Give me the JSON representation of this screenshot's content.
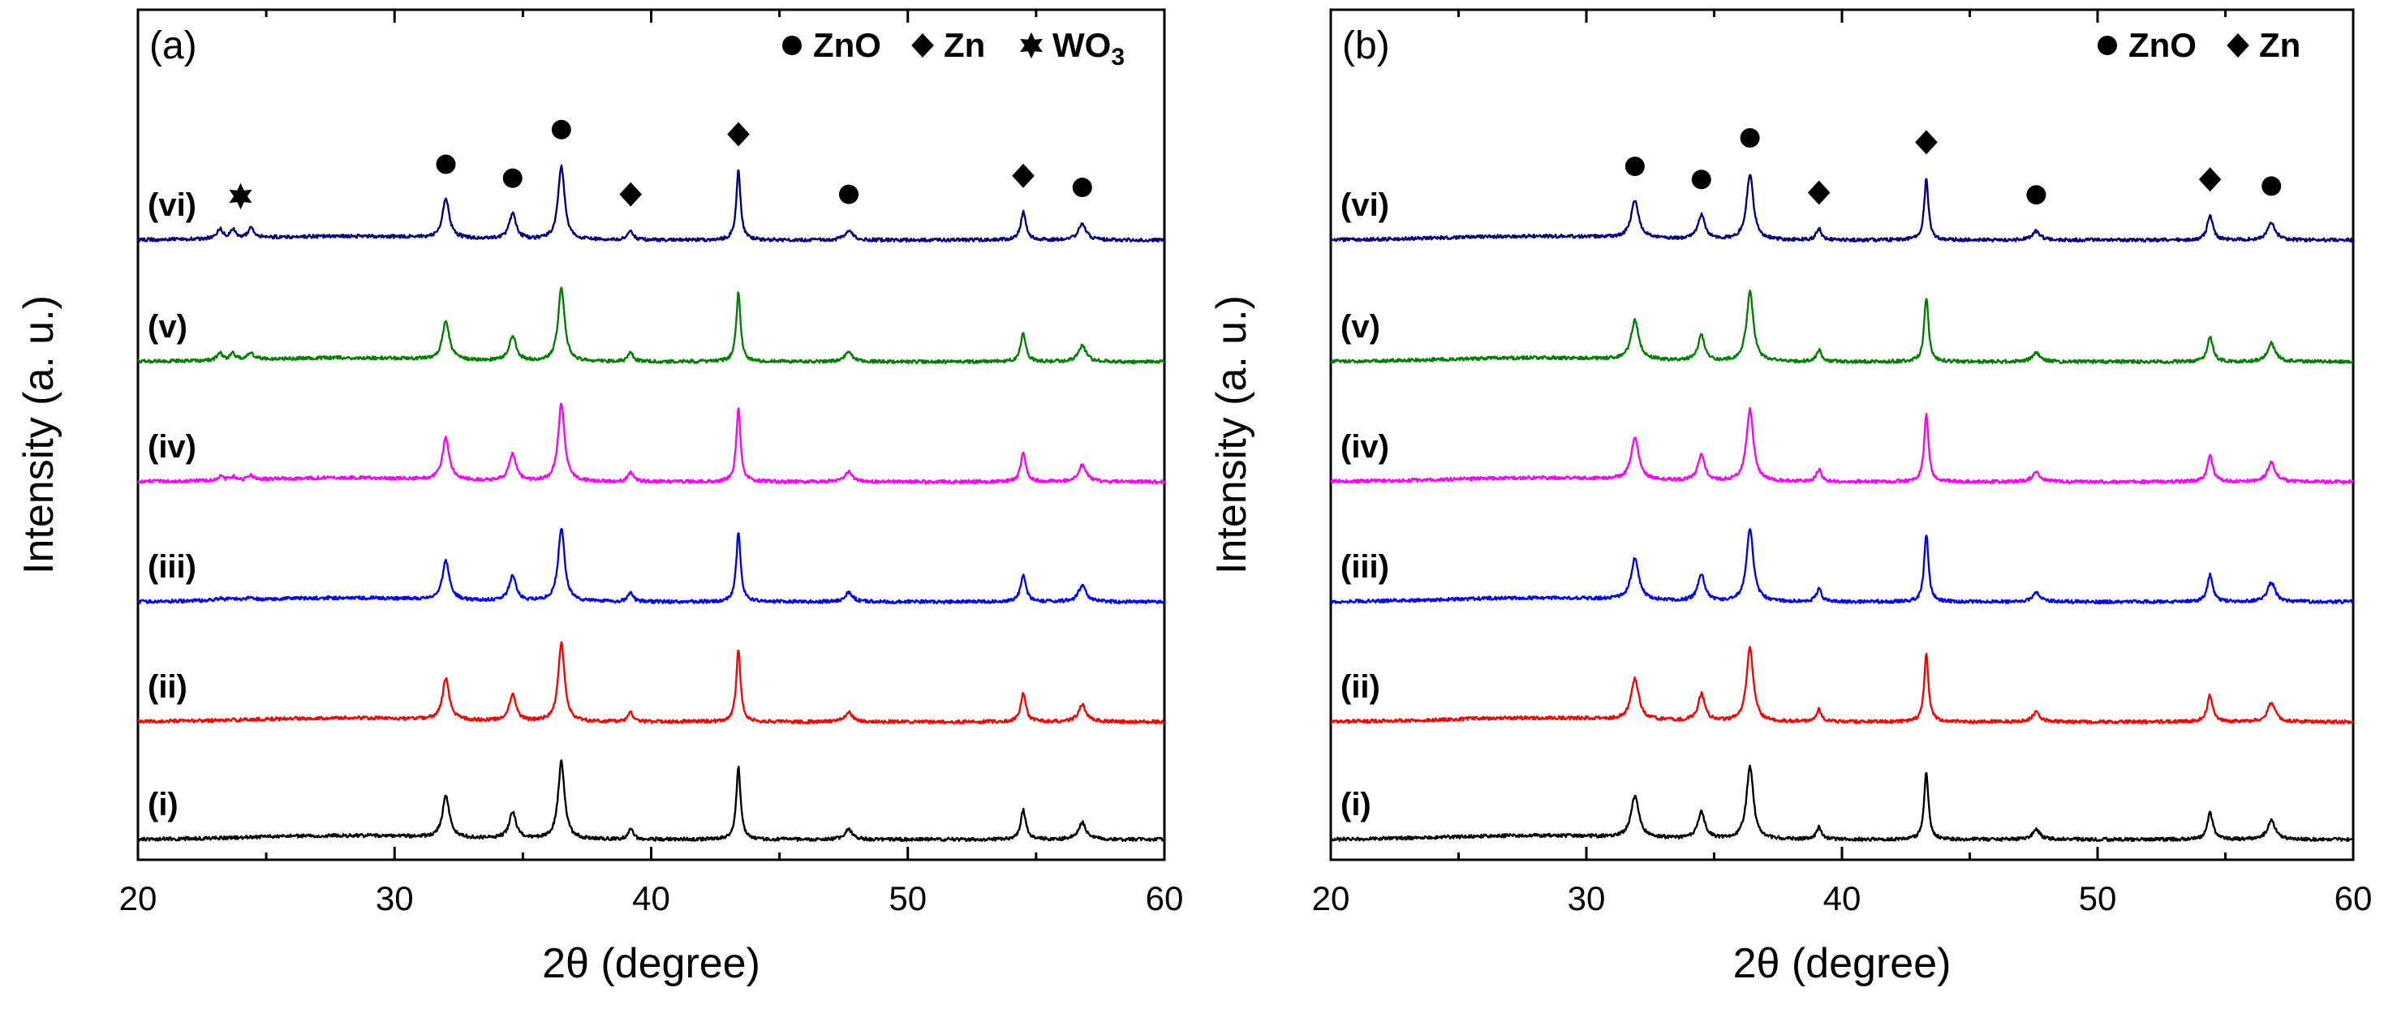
{
  "chart_data": [
    {
      "type": "line",
      "panel": "(a)",
      "xlabel": "2θ (degree)",
      "ylabel": "Intensity (a. u.)",
      "xlim": [
        20,
        60
      ],
      "xticks": [
        20,
        30,
        40,
        50,
        60
      ],
      "y_ticks_shown": false,
      "legend": [
        {
          "marker": "circle",
          "label": "ZnO"
        },
        {
          "marker": "diamond",
          "label": "Zn"
        },
        {
          "marker": "star",
          "label": "WO",
          "subscript": "3"
        }
      ],
      "peaks": [
        {
          "x": 32.0,
          "h": 0.85,
          "w": 0.16
        },
        {
          "x": 34.6,
          "h": 0.55,
          "w": 0.16
        },
        {
          "x": 36.5,
          "h": 1.6,
          "w": 0.15
        },
        {
          "x": 39.2,
          "h": 0.2,
          "w": 0.12
        },
        {
          "x": 43.4,
          "h": 1.5,
          "w": 0.1
        },
        {
          "x": 47.7,
          "h": 0.2,
          "w": 0.18
        },
        {
          "x": 54.5,
          "h": 0.6,
          "w": 0.12
        },
        {
          "x": 56.8,
          "h": 0.35,
          "w": 0.18
        }
      ],
      "series": [
        {
          "name": "(i)",
          "color": "#000000",
          "offset": 0,
          "peak_scale": 1.0,
          "wo3": 0
        },
        {
          "name": "(ii)",
          "color": "#ff0000",
          "offset": 1,
          "peak_scale": 1.0,
          "wo3": 0
        },
        {
          "name": "(iii)",
          "color": "#0000ff",
          "offset": 2,
          "peak_scale": 0.95,
          "wo3": 0.05
        },
        {
          "name": "(iv)",
          "color": "#ff00ff",
          "offset": 3,
          "peak_scale": 1.0,
          "wo3": 0.08
        },
        {
          "name": "(v)",
          "color": "#008000",
          "offset": 4,
          "peak_scale": 0.95,
          "wo3": 0.15
        },
        {
          "name": "(vi)",
          "color": "#000080",
          "offset": 5,
          "peak_scale": 0.95,
          "wo3": 0.2
        }
      ],
      "annotations": [
        {
          "marker": "star",
          "x": 24.0,
          "series": "(vi)"
        },
        {
          "marker": "circle",
          "x": 32.0,
          "series": "(vi)"
        },
        {
          "marker": "circle",
          "x": 34.6,
          "series": "(vi)"
        },
        {
          "marker": "circle",
          "x": 36.5,
          "series": "(vi)"
        },
        {
          "marker": "diamond",
          "x": 39.2,
          "series": "(vi)"
        },
        {
          "marker": "diamond",
          "x": 43.4,
          "series": "(vi)"
        },
        {
          "marker": "circle",
          "x": 47.7,
          "series": "(vi)"
        },
        {
          "marker": "diamond",
          "x": 54.5,
          "series": "(vi)"
        },
        {
          "marker": "circle",
          "x": 56.8,
          "series": "(vi)"
        }
      ]
    },
    {
      "type": "line",
      "panel": "(b)",
      "xlabel": "2θ (degree)",
      "ylabel": "Intensity (a. u.)",
      "xlim": [
        20,
        60
      ],
      "xticks": [
        20,
        30,
        40,
        50,
        60
      ],
      "y_ticks_shown": false,
      "legend": [
        {
          "marker": "circle",
          "label": "ZnO"
        },
        {
          "marker": "diamond",
          "label": "Zn"
        }
      ],
      "peaks": [
        {
          "x": 31.9,
          "h": 0.85,
          "w": 0.18
        },
        {
          "x": 34.5,
          "h": 0.55,
          "w": 0.16
        },
        {
          "x": 36.4,
          "h": 1.5,
          "w": 0.16
        },
        {
          "x": 39.1,
          "h": 0.25,
          "w": 0.12
        },
        {
          "x": 43.3,
          "h": 1.4,
          "w": 0.1
        },
        {
          "x": 47.6,
          "h": 0.2,
          "w": 0.18
        },
        {
          "x": 54.4,
          "h": 0.55,
          "w": 0.13
        },
        {
          "x": 56.8,
          "h": 0.4,
          "w": 0.18
        }
      ],
      "series": [
        {
          "name": "(i)",
          "color": "#000000",
          "offset": 0,
          "peak_scale": 1.0,
          "wo3": 0
        },
        {
          "name": "(ii)",
          "color": "#ff0000",
          "offset": 1,
          "peak_scale": 1.0,
          "wo3": 0
        },
        {
          "name": "(iii)",
          "color": "#0000ff",
          "offset": 2,
          "peak_scale": 1.0,
          "wo3": 0
        },
        {
          "name": "(iv)",
          "color": "#ff00ff",
          "offset": 3,
          "peak_scale": 1.0,
          "wo3": 0
        },
        {
          "name": "(v)",
          "color": "#008000",
          "offset": 4,
          "peak_scale": 0.95,
          "wo3": 0
        },
        {
          "name": "(vi)",
          "color": "#000080",
          "offset": 5,
          "peak_scale": 0.9,
          "wo3": 0
        }
      ],
      "annotations": [
        {
          "marker": "circle",
          "x": 31.9,
          "series": "(vi)"
        },
        {
          "marker": "circle",
          "x": 34.5,
          "series": "(vi)"
        },
        {
          "marker": "circle",
          "x": 36.4,
          "series": "(vi)"
        },
        {
          "marker": "diamond",
          "x": 39.1,
          "series": "(vi)"
        },
        {
          "marker": "diamond",
          "x": 43.3,
          "series": "(vi)"
        },
        {
          "marker": "circle",
          "x": 47.6,
          "series": "(vi)"
        },
        {
          "marker": "diamond",
          "x": 54.4,
          "series": "(vi)"
        },
        {
          "marker": "circle",
          "x": 56.8,
          "series": "(vi)"
        }
      ]
    }
  ]
}
